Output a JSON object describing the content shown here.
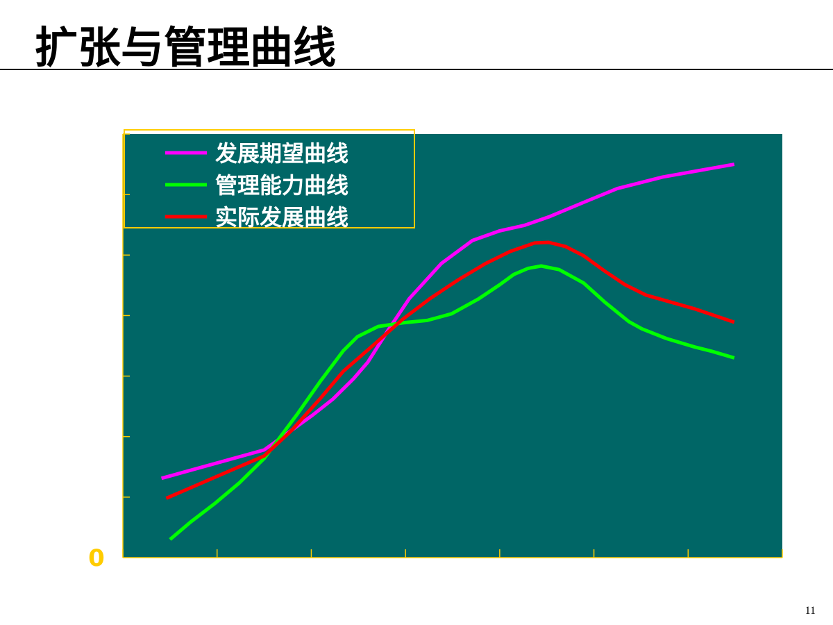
{
  "slide": {
    "title": "扩张与管理曲线",
    "page_number": "11"
  },
  "chart_data": {
    "type": "line",
    "xlim": [
      0,
      7
    ],
    "ylim": [
      0,
      7.0
    ],
    "yticks": [
      0
    ],
    "ytick_marks": [
      1,
      2,
      3,
      4,
      5,
      6,
      7
    ],
    "xtick_marks": [
      0,
      1,
      2,
      3,
      4,
      5,
      6,
      7
    ],
    "background": "#006666",
    "legend": "top-left",
    "series": [
      {
        "name": "发展期望曲线",
        "color": "#ff00ff",
        "x": [
          0.41,
          1.5,
          2.01,
          2.23,
          2.45,
          2.6,
          2.82,
          3.04,
          3.38,
          3.71,
          4.0,
          4.26,
          4.52,
          4.89,
          5.25,
          5.73,
          6.49
        ],
        "values": [
          1.31,
          1.78,
          2.35,
          2.62,
          2.96,
          3.23,
          3.77,
          4.28,
          4.86,
          5.24,
          5.4,
          5.49,
          5.63,
          5.87,
          6.1,
          6.29,
          6.5
        ]
      },
      {
        "name": "管理能力曲线",
        "color": "#00ff00",
        "x": [
          0.5,
          0.72,
          0.98,
          1.24,
          1.5,
          1.64,
          1.86,
          2.09,
          2.34,
          2.49,
          2.71,
          2.97,
          3.23,
          3.49,
          3.78,
          4.0,
          4.15,
          4.3,
          4.44,
          4.63,
          4.89,
          5.11,
          5.37,
          5.51,
          5.77,
          6.07,
          6.25,
          6.49
        ],
        "values": [
          0.3,
          0.59,
          0.9,
          1.24,
          1.64,
          1.93,
          2.39,
          2.9,
          3.42,
          3.65,
          3.82,
          3.88,
          3.92,
          4.03,
          4.28,
          4.51,
          4.68,
          4.78,
          4.82,
          4.76,
          4.54,
          4.23,
          3.9,
          3.78,
          3.62,
          3.48,
          3.41,
          3.3
        ]
      },
      {
        "name": "实际发展曲线",
        "color": "#ff0000",
        "x": [
          0.46,
          1.5,
          1.79,
          2.09,
          2.34,
          2.68,
          2.97,
          3.26,
          3.56,
          3.85,
          4.11,
          4.37,
          4.52,
          4.7,
          4.89,
          5.11,
          5.33,
          5.55,
          6.07,
          6.49
        ],
        "values": [
          0.98,
          1.68,
          2.1,
          2.62,
          3.08,
          3.54,
          3.94,
          4.28,
          4.59,
          4.86,
          5.06,
          5.2,
          5.21,
          5.14,
          4.99,
          4.74,
          4.51,
          4.34,
          4.11,
          3.89
        ]
      }
    ]
  }
}
